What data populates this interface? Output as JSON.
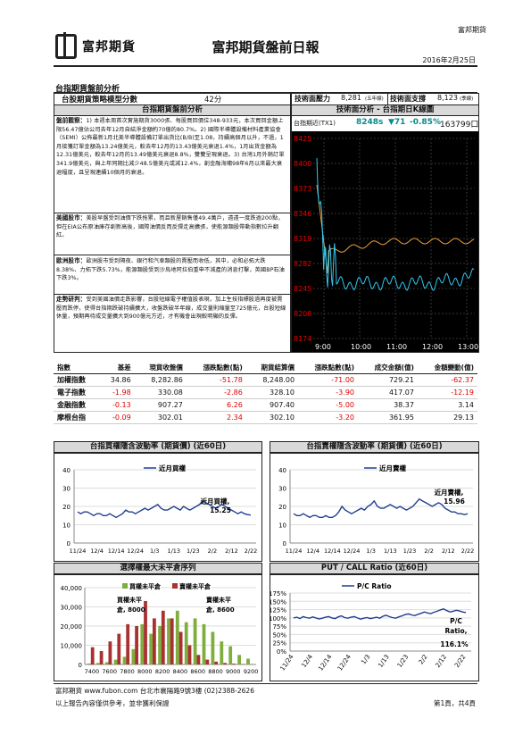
{
  "header": {
    "company_tag": "富邦期貨",
    "logo_text": "富邦期貨",
    "title": "富邦期貨盤前日報",
    "date": "2016年2月25日"
  },
  "section": {
    "title": "台指期貨盤前分析"
  },
  "strategy": {
    "label": "台股期貨策略模型分數",
    "score": "42分",
    "pressure_label": "技術面壓力",
    "pressure_value": "8,281",
    "pressure_note": "(五年線)",
    "support_label": "技術面支撐",
    "support_value": "8,123",
    "support_note": "(季線)"
  },
  "analysis": {
    "left_title": "台指期貨盤前分析",
    "right_title": "技術面分析 - 台指期日K線圖",
    "paragraphs": [
      {
        "head": "盤前觀察：",
        "body": "1) 本週本周首次實施期貨3000張、每股買回價位348-933元，本次買回金額上限56.47億佔公司去年12月自結淨金額約70億的80.7%。2) 國際半導體設備材料產業協會（SEMI）公佈最新1月北美半導體設備訂單出貨比(B/B)至1.08，持續高個月以升，不過，1月接獲訂單金額為13.24億美元，較去年12月的13.43億美元衰退1.4%，1月出貨金額為12.31億美元，較去年12月的13.49億美元衰退8.8%，雙雙呈現衰退。3) 台灣1月外銷訂單341.9億美元，與上年同期比減少48.5億美元或減12.4%，創金融海嘯98年6月以來最大衰退幅度，且呈現連續10個月的衰退。"
      },
      {
        "head": "美國股市：",
        "body": "美股早盤受到油價下跌拖累，而且新屋銷售僅49.4萬戶，遠遠一度跌逾200點，但在EIA公布原油庫存創新高後，國際油價反而反彈走高擴張，使能源類股帶動指數拉升翻紅。"
      },
      {
        "head": "歐洲股市：",
        "body": "歐洲股市受到隔夜、銀行和汽車類股的賣壓而收低，其中，必和必拓大跌8.38%、力拓下跌5.73%，能源類股受到沙烏地阿拉伯重申不減產的消息打擊，英國BP石油下跌3%。"
      },
      {
        "head": "走勢研判：",
        "body": "受到美國油價走跌影響，台股短線電子權值股表現，加上生技指標股過再度被賣壓而跌停，使得台指期跌破持續擴大，收盤跌破半年線，成交量則縮量至725億元，台股短線休量，預期再待成交量擴大到900億元方近，才有機會出現較明顯的反彈。"
      }
    ]
  },
  "kline": {
    "header": "台指期近(TX1)",
    "price": "8248s",
    "change": "▼71",
    "pct": "-0.85%",
    "volume": "163799口",
    "y_ticks": [
      "8425",
      "8400",
      "8373",
      "8346",
      "8319",
      "8282",
      "8245",
      "8208",
      "8174"
    ],
    "x_ticks": [
      "9:00",
      "10:00",
      "11:00",
      "12:00",
      "13:00"
    ]
  },
  "index_table": {
    "headers": [
      "指數",
      "基差",
      "現貨收盤價",
      "漲跌點數(點)",
      "期貨結算價",
      "漲跌點數(點)",
      "成交金額(億)",
      "金額變動(億)"
    ],
    "rows": [
      {
        "name": "加權指數",
        "basis": "34.86",
        "spot": "8,282.86",
        "spot_chg": "-51.78",
        "fut": "8,248.00",
        "fut_chg": "-71.00",
        "amt": "729.21",
        "amt_chg": "-62.37"
      },
      {
        "name": "電子指數",
        "basis": "-1.98",
        "spot": "330.08",
        "spot_chg": "-2.86",
        "fut": "328.10",
        "fut_chg": "-3.90",
        "amt": "417.07",
        "amt_chg": "-12.19"
      },
      {
        "name": "金融指數",
        "basis": "-0.13",
        "spot": "907.27",
        "spot_chg": "6.26",
        "fut": "907.40",
        "fut_chg": "-5.00",
        "amt": "38.37",
        "amt_chg": "3.14"
      },
      {
        "name": "摩根台指",
        "basis": "-0.09",
        "spot": "302.01",
        "spot_chg": "2.34",
        "fut": "302.10",
        "fut_chg": "-3.20",
        "amt": "361.95",
        "amt_chg": "29.13"
      }
    ]
  },
  "charts": {
    "buy": {
      "title": "台指買權隱含波動率 (期貨價) (近60日)",
      "legend": "近月買權",
      "annot": "近月買權,",
      "annot_val": "15.25",
      "y_ticks": [
        "40",
        "30",
        "20",
        "10",
        "0"
      ],
      "x_ticks": [
        "11/24",
        "12/4",
        "12/14",
        "12/24",
        "1/3",
        "1/13",
        "1/23",
        "2/2",
        "2/12",
        "2/22"
      ]
    },
    "sell": {
      "title": "台指賣權隱含波動率 (期貨價) (近60日)",
      "legend": "近月賣權",
      "annot": "近月賣權,",
      "annot_val": "15.96",
      "y_ticks": [
        "40",
        "30",
        "20",
        "10",
        "0"
      ],
      "x_ticks": [
        "11/24",
        "12/4",
        "12/14",
        "12/24",
        "1/3",
        "1/13",
        "1/23",
        "2/2",
        "2/12",
        "2/22"
      ]
    },
    "oi": {
      "title": "選擇權最大未平倉序列",
      "legend_buy": "買權未平倉",
      "legend_sell": "賣權未平倉",
      "annot_buy": "買權未平",
      "annot_buy2": "倉, 8000",
      "annot_sell": "賣權未平",
      "annot_sell2": "倉, 8600",
      "y_ticks": [
        "40,000",
        "30,000",
        "20,000",
        "10,000",
        "0"
      ],
      "x_ticks": [
        "7400",
        "7600",
        "7800",
        "8000",
        "8200",
        "8400",
        "8600",
        "8800",
        "9000",
        "9200"
      ]
    },
    "pc": {
      "title": "PUT / CALL Ratio (近60日)",
      "legend": "P/C Ratio",
      "annot": "P/C",
      "annot2": "Ratio,",
      "annot_val": "116.1%",
      "y_ticks": [
        "175%",
        "150%",
        "125%",
        "100%",
        "75%",
        "50%",
        "25%",
        "0%"
      ],
      "x_ticks": [
        "11/24",
        "12/4",
        "12/14",
        "12/24",
        "1/3",
        "1/13",
        "1/23",
        "2/2",
        "2/12",
        "2/22"
      ]
    }
  },
  "chart_data": [
    {
      "type": "line",
      "title": "台指買權隱含波動率 (期貨價) (近60日)",
      "series": [
        {
          "name": "近月買權",
          "values": [
            17,
            16,
            17,
            17,
            16,
            15,
            16,
            16,
            15,
            15,
            16,
            15,
            14,
            15,
            16,
            18,
            17,
            17,
            16,
            17,
            18,
            19,
            18,
            19,
            20,
            21,
            19,
            18,
            18,
            19,
            20,
            19,
            18,
            20,
            19,
            18,
            19,
            20,
            21,
            23,
            22,
            21,
            20,
            19,
            20,
            21,
            20,
            19,
            18,
            17,
            16,
            17,
            16,
            15.5,
            15.25
          ]
        }
      ],
      "ylim": [
        0,
        40
      ]
    },
    {
      "type": "line",
      "title": "台指賣權隱含波動率 (期貨價) (近60日)",
      "series": [
        {
          "name": "近月賣權",
          "values": [
            16,
            15,
            15,
            16,
            15,
            14,
            15,
            15,
            14,
            14,
            15,
            14,
            14,
            15,
            17,
            20,
            18,
            17,
            16,
            17,
            18,
            19,
            18,
            20,
            21,
            23,
            20,
            19,
            19,
            20,
            21,
            20,
            19,
            20,
            19,
            18,
            19,
            20,
            22,
            24,
            23,
            22,
            21,
            20,
            21,
            22,
            21,
            19,
            18,
            17,
            17,
            16,
            16,
            15.5,
            15.96
          ]
        }
      ],
      "ylim": [
        0,
        40
      ]
    },
    {
      "type": "bar",
      "title": "選擇權最大未平倉序列",
      "categories": [
        "7400",
        "7500",
        "7600",
        "7700",
        "7800",
        "7900",
        "8000",
        "8100",
        "8200",
        "8300",
        "8400",
        "8500",
        "8600",
        "8700",
        "8800",
        "8900",
        "9000",
        "9100",
        "9200"
      ],
      "series": [
        {
          "name": "買權未平倉",
          "values": [
            500,
            800,
            1200,
            2500,
            4000,
            8000,
            21000,
            16000,
            20000,
            24000,
            28000,
            22000,
            24000,
            21000,
            17000,
            12000,
            9500,
            5000,
            3000
          ]
        },
        {
          "name": "賣權未平倉",
          "values": [
            9000,
            7000,
            12000,
            16000,
            21000,
            20000,
            33000,
            24000,
            28000,
            24000,
            17000,
            10000,
            5000,
            2500,
            1500,
            800,
            400,
            200,
            100
          ]
        }
      ],
      "ylim": [
        0,
        40000
      ]
    },
    {
      "type": "line",
      "title": "PUT / CALL Ratio (近60日)",
      "series": [
        {
          "name": "P/C Ratio",
          "values": [
            100,
            102,
            98,
            104,
            101,
            99,
            103,
            100,
            97,
            99,
            102,
            104,
            100,
            98,
            103,
            106,
            101,
            99,
            102,
            104,
            100,
            96,
            99,
            101,
            98,
            100,
            102,
            99,
            105,
            108,
            104,
            101,
            99,
            103,
            106,
            110,
            112,
            109,
            107,
            111,
            114,
            118,
            115,
            113,
            117,
            120,
            124,
            127,
            122,
            118,
            120,
            123,
            121,
            118,
            116.1
          ]
        }
      ],
      "ylim": [
        0,
        175
      ]
    }
  ],
  "footer": {
    "line1": "富邦期貨 www.fubon.com 台北市襄陽路9號3樓 (02)2388-2626",
    "line2": "以上報告內容僅供參考，並非獲利保證",
    "page": "第1頁，共4頁"
  }
}
